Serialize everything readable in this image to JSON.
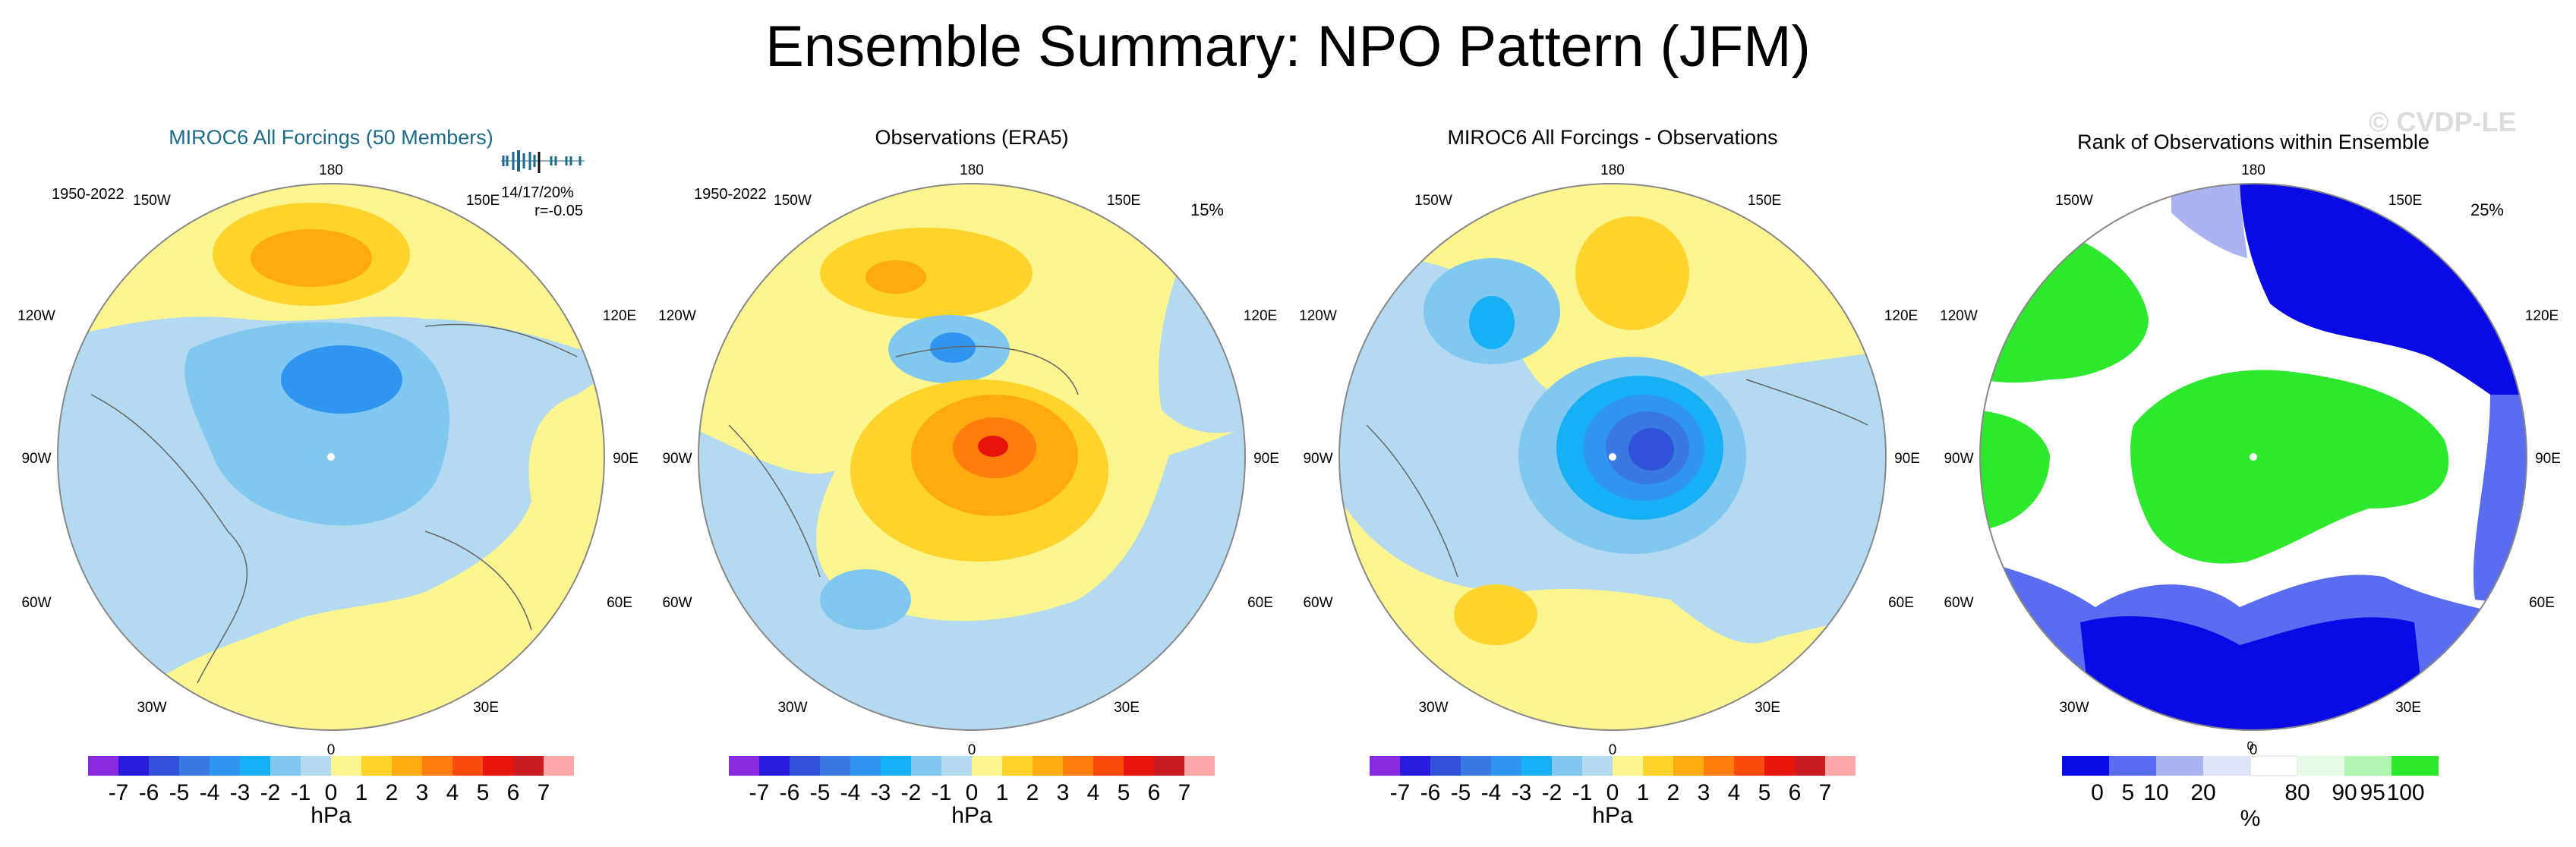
{
  "figure": {
    "title": "Ensemble Summary: NPO Pattern (JFM)",
    "watermark": "© CVDP-LE"
  },
  "panels": [
    {
      "id": "p1",
      "title": "MIROC6 All Forcings (50 Members)",
      "title_color": "#1b6a8a",
      "period": "1950-2022",
      "stat_line1": "14/17/20%",
      "stat_line2": "r=-0.05",
      "legend": "hpa"
    },
    {
      "id": "p2",
      "title": "Observations (ERA5)",
      "title_color": "#000000",
      "period": "1950-2022",
      "stat_line1": "15%",
      "legend": "hpa"
    },
    {
      "id": "p3",
      "title": "MIROC6 All Forcings - Observations",
      "title_color": "#000000",
      "legend": "hpa"
    },
    {
      "id": "p4",
      "title": "Rank of Observations within Ensemble",
      "title_color": "#000000",
      "stat_line1": "25%",
      "legend": "pct"
    }
  ],
  "map_labels": {
    "top": "180",
    "bottom": "0",
    "left": "90W",
    "right": "90E",
    "ul1": "150W",
    "ul2": "120W",
    "ur1": "150E",
    "ur2": "120E",
    "ll1": "60W",
    "ll2": "30W",
    "lr1": "60E",
    "lr2": "30E"
  },
  "legend_hpa": {
    "unit": "hPa",
    "colors": [
      "#8a2be2",
      "#2a1adc",
      "#2f52d8",
      "#3a7ae0",
      "#2f95ee",
      "#17b0f5",
      "#80c8ef",
      "#b3daf0",
      "#fdf590",
      "#fed42c",
      "#feaa10",
      "#fe7d0c",
      "#fa4a0e",
      "#e8150c",
      "#c81c20",
      "#fca8a8"
    ],
    "ticks": [
      "-7",
      "-6",
      "-5",
      "-4",
      "-3",
      "-2",
      "-1",
      "0",
      "1",
      "2",
      "3",
      "4",
      "5",
      "6",
      "7"
    ]
  },
  "legend_pct": {
    "unit": "%",
    "colors": [
      "#0a0ae6",
      "#5a6cf0",
      "#aab4f3",
      "#e0e4fa",
      "#ffffff",
      "#e6fbe6",
      "#b0f6b0",
      "#2ee82e"
    ],
    "ticks": [
      "0",
      "5",
      "10",
      "20",
      "80",
      "90",
      "95",
      "100"
    ],
    "top_tick": "0"
  },
  "colors": {
    "ocean_light_blue": "#b3daf0",
    "pale_yellow": "#fdf590",
    "green": "#2ee82e",
    "dark_blue": "#0a0ae6"
  }
}
